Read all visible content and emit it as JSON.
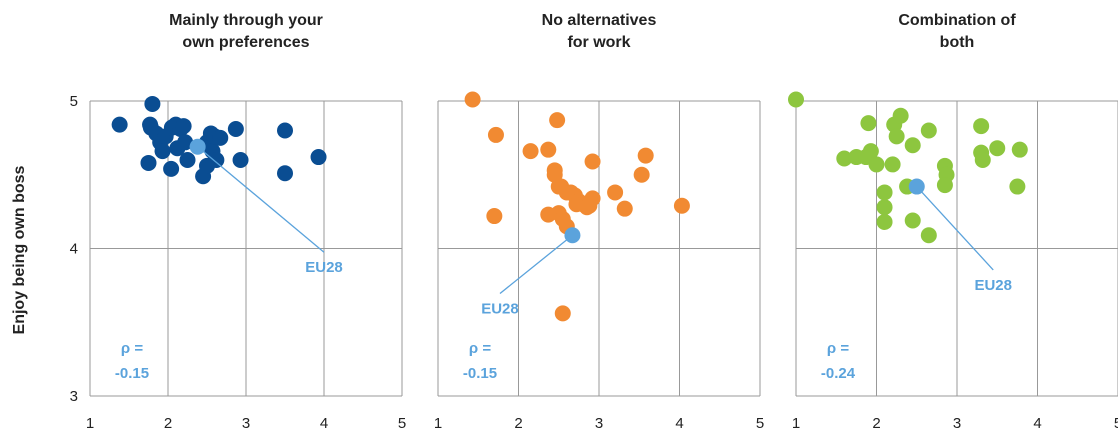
{
  "y_axis_label": "Enjoy being own boss",
  "colors": {
    "eu28": "#5ba3dc",
    "label": "#5ba3dc",
    "grid": "#999999"
  },
  "chart_data": [
    {
      "type": "scatter",
      "title_lines": [
        "Mainly through your",
        "own preferences"
      ],
      "color": "#0a4d92",
      "xlim": [
        1,
        5
      ],
      "ylim": [
        3,
        5
      ],
      "xticks": [
        "1",
        "2",
        "3",
        "4",
        "5"
      ],
      "yticks": [
        "3",
        "4",
        "5"
      ],
      "points": [
        [
          1.38,
          4.84
        ],
        [
          1.77,
          4.84
        ],
        [
          1.78,
          4.82
        ],
        [
          1.8,
          4.98
        ],
        [
          1.85,
          4.78
        ],
        [
          1.9,
          4.72
        ],
        [
          1.93,
          4.66
        ],
        [
          1.97,
          4.76
        ],
        [
          2.05,
          4.82
        ],
        [
          2.1,
          4.84
        ],
        [
          2.16,
          4.81
        ],
        [
          2.2,
          4.83
        ],
        [
          2.12,
          4.68
        ],
        [
          2.22,
          4.72
        ],
        [
          2.25,
          4.6
        ],
        [
          1.75,
          4.58
        ],
        [
          2.04,
          4.54
        ],
        [
          2.45,
          4.49
        ],
        [
          2.5,
          4.72
        ],
        [
          2.55,
          4.78
        ],
        [
          2.57,
          4.66
        ],
        [
          2.6,
          4.76
        ],
        [
          2.67,
          4.75
        ],
        [
          2.5,
          4.56
        ],
        [
          2.62,
          4.6
        ],
        [
          2.87,
          4.81
        ],
        [
          2.93,
          4.6
        ],
        [
          3.5,
          4.8
        ],
        [
          3.5,
          4.51
        ],
        [
          3.93,
          4.62
        ]
      ],
      "eu28": {
        "x": 2.38,
        "y": 4.69,
        "label": "EU28",
        "label_x": 4.0,
        "label_y": 3.88
      },
      "rho": {
        "line1": "ρ =",
        "line2": "-0.15"
      }
    },
    {
      "type": "scatter",
      "title_lines": [
        "No alternatives",
        "for work"
      ],
      "color": "#f18a32",
      "xlim": [
        1,
        5
      ],
      "ylim": [
        3,
        5
      ],
      "xticks": [
        "1",
        "2",
        "3",
        "4",
        "5"
      ],
      "yticks": [
        "3",
        "4",
        "5"
      ],
      "points": [
        [
          1.43,
          5.01
        ],
        [
          1.72,
          4.77
        ],
        [
          1.7,
          4.22
        ],
        [
          2.15,
          4.66
        ],
        [
          2.37,
          4.67
        ],
        [
          2.45,
          4.53
        ],
        [
          2.48,
          4.87
        ],
        [
          2.45,
          4.5
        ],
        [
          2.53,
          4.42
        ],
        [
          2.6,
          4.38
        ],
        [
          2.65,
          4.38
        ],
        [
          2.7,
          4.36
        ],
        [
          2.72,
          4.3
        ],
        [
          2.75,
          4.32
        ],
        [
          2.8,
          4.3
        ],
        [
          2.85,
          4.28
        ],
        [
          2.92,
          4.34
        ],
        [
          2.92,
          4.59
        ],
        [
          2.5,
          4.42
        ],
        [
          2.5,
          4.24
        ],
        [
          2.37,
          4.23
        ],
        [
          2.6,
          4.15
        ],
        [
          2.55,
          4.2
        ],
        [
          2.88,
          4.29
        ],
        [
          3.2,
          4.38
        ],
        [
          3.32,
          4.27
        ],
        [
          3.53,
          4.5
        ],
        [
          3.58,
          4.63
        ],
        [
          4.03,
          4.29
        ],
        [
          2.55,
          3.56
        ]
      ],
      "eu28": {
        "x": 2.67,
        "y": 4.09,
        "label": "EU28",
        "label_x": 1.77,
        "label_y": 3.6
      },
      "rho": {
        "line1": "ρ =",
        "line2": "-0.15"
      }
    },
    {
      "type": "scatter",
      "title_lines": [
        "Combination of",
        "both"
      ],
      "color": "#8dc63f",
      "xlim": [
        1,
        5
      ],
      "ylim": [
        3,
        5
      ],
      "xticks": [
        "1",
        "2",
        "3",
        "4",
        "5"
      ],
      "yticks": [
        "3",
        "4",
        "5"
      ],
      "points": [
        [
          1.0,
          5.01
        ],
        [
          1.6,
          4.61
        ],
        [
          1.75,
          4.62
        ],
        [
          1.87,
          4.62
        ],
        [
          1.9,
          4.85
        ],
        [
          1.93,
          4.66
        ],
        [
          2.0,
          4.57
        ],
        [
          2.2,
          4.57
        ],
        [
          2.22,
          4.84
        ],
        [
          2.25,
          4.76
        ],
        [
          2.3,
          4.9
        ],
        [
          2.38,
          4.42
        ],
        [
          2.45,
          4.7
        ],
        [
          2.65,
          4.8
        ],
        [
          2.85,
          4.56
        ],
        [
          2.87,
          4.5
        ],
        [
          2.85,
          4.43
        ],
        [
          2.1,
          4.38
        ],
        [
          2.1,
          4.28
        ],
        [
          2.1,
          4.18
        ],
        [
          2.45,
          4.19
        ],
        [
          2.65,
          4.09
        ],
        [
          3.3,
          4.83
        ],
        [
          3.3,
          4.65
        ],
        [
          3.32,
          4.6
        ],
        [
          3.5,
          4.68
        ],
        [
          3.75,
          4.42
        ],
        [
          3.78,
          4.67
        ]
      ],
      "eu28": {
        "x": 2.5,
        "y": 4.42,
        "label": "EU28",
        "label_x": 3.45,
        "label_y": 3.76
      },
      "rho": {
        "line1": "ρ =",
        "line2": "-0.24"
      }
    }
  ]
}
